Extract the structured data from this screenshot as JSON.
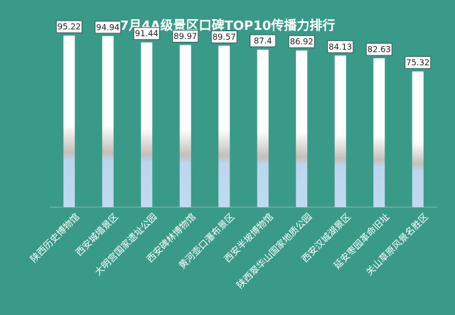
{
  "chart_data": {
    "type": "bar",
    "title": "7月4A级景区口碑TOP10传播力排行",
    "categories": [
      "陕西历史博物馆",
      "西安城墙景区",
      "大明宫国家遗址公园",
      "西安碑林博物馆",
      "黄河壶口瀑布景区",
      "西安半坡博物馆",
      "陕西翠华山国家地质公园",
      "西安汉城湖景区",
      "延安枣园革命旧址",
      "关山草原风景名胜区"
    ],
    "values": [
      95.22,
      94.94,
      91.44,
      89.97,
      89.57,
      87.4,
      86.92,
      84.13,
      82.63,
      75.32
    ],
    "value_labels": [
      "95.22",
      "94.94",
      "91.44",
      "89.97",
      "89.57",
      "87.4",
      "86.92",
      "84.13",
      "82.63",
      "75.32"
    ],
    "ylim": [
      0,
      100
    ],
    "grid": false,
    "legend": "none",
    "colors": {
      "background": "#3a9a88",
      "bar_top": "#ffffff",
      "bar_mid": "#c4bfbb",
      "bar_bottom": "#bcd6ee",
      "label_box": "#ffffff",
      "label_border": "#2d5d55",
      "text": "#ffffff"
    }
  }
}
